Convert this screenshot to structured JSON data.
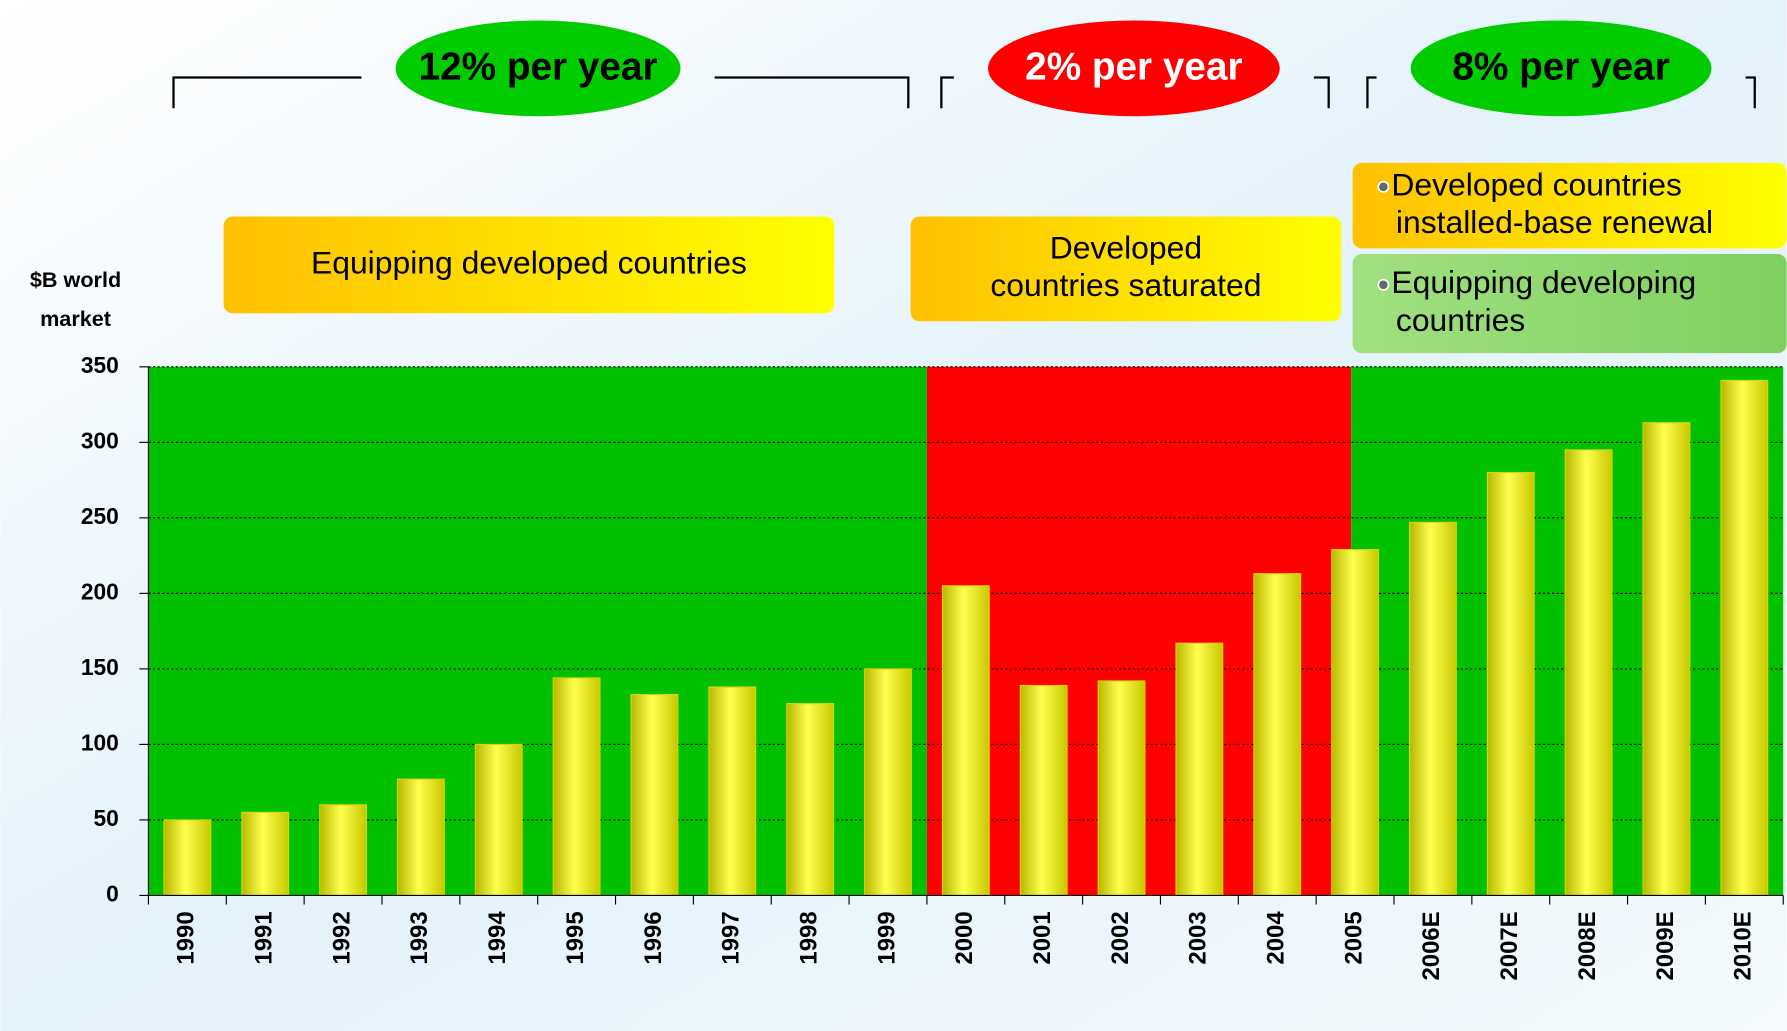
{
  "chart_data": {
    "type": "bar",
    "y_axis_label": [
      "$B world",
      "market"
    ],
    "categories": [
      "1990",
      "1991",
      "1992",
      "1993",
      "1994",
      "1995",
      "1996",
      "1997",
      "1998",
      "1999",
      "2000",
      "2001",
      "2002",
      "2003",
      "2004",
      "2005",
      "2006E",
      "2007E",
      "2008E",
      "2009E",
      "2010E"
    ],
    "values": [
      50,
      55,
      60,
      77,
      100,
      144,
      133,
      138,
      127,
      150,
      205,
      139,
      142,
      167,
      213,
      229,
      247,
      280,
      295,
      313,
      341
    ],
    "color": "#ffff00",
    "ylim": [
      0,
      350
    ],
    "yticks": [
      0,
      50,
      100,
      150,
      200,
      250,
      300,
      350
    ],
    "grid": true,
    "regions": [
      {
        "color": "#00c000",
        "rate": "12% per year",
        "notes": [
          {
            "lines": [
              "Equipping developed countries"
            ]
          }
        ]
      },
      {
        "color": "#ff0000",
        "rate": "2% per year",
        "notes": [
          {
            "lines": [
              "Developed",
              "countries saturated"
            ]
          }
        ]
      },
      {
        "color": "#00c000",
        "rate": "8% per year",
        "notes": [
          {
            "lines": [
              "Developed countries",
              "installed-base renewal"
            ]
          },
          {
            "lines": [
              "Equipping developing",
              "countries"
            ]
          }
        ]
      }
    ]
  }
}
